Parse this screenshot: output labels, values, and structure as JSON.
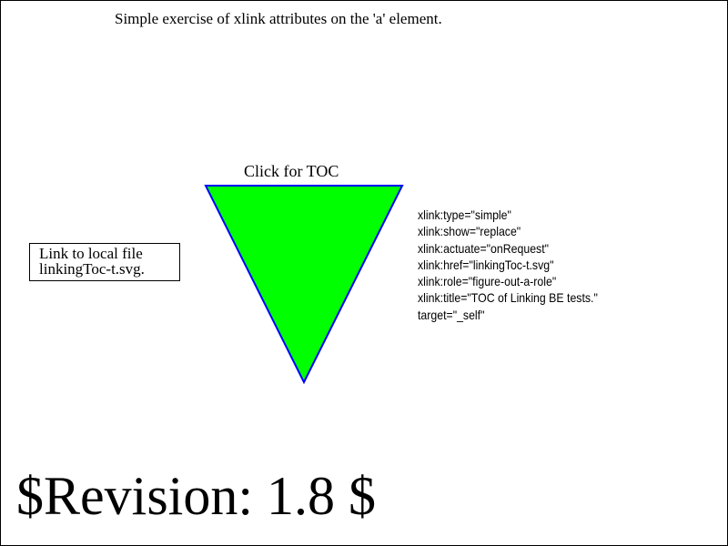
{
  "heading": "Simple exercise of xlink attributes on the 'a' element.",
  "toc_link": {
    "label": "Click for TOC",
    "fill": "#00ff00",
    "stroke": "#0000ff"
  },
  "local_link": {
    "line1": "Link to local file",
    "line2": "linkingToc-t.svg."
  },
  "attributes": [
    "xlink:type=\"simple\"",
    "xlink:show=\"replace\"",
    "xlink:actuate=\"onRequest\"",
    "xlink:href=\"linkingToc-t.svg\"",
    "xlink:role=\"figure-out-a-role\"",
    "xlink:title=\"TOC of Linking BE tests.\"",
    "target=\"_self\""
  ],
  "revision": "$Revision: 1.8 $"
}
